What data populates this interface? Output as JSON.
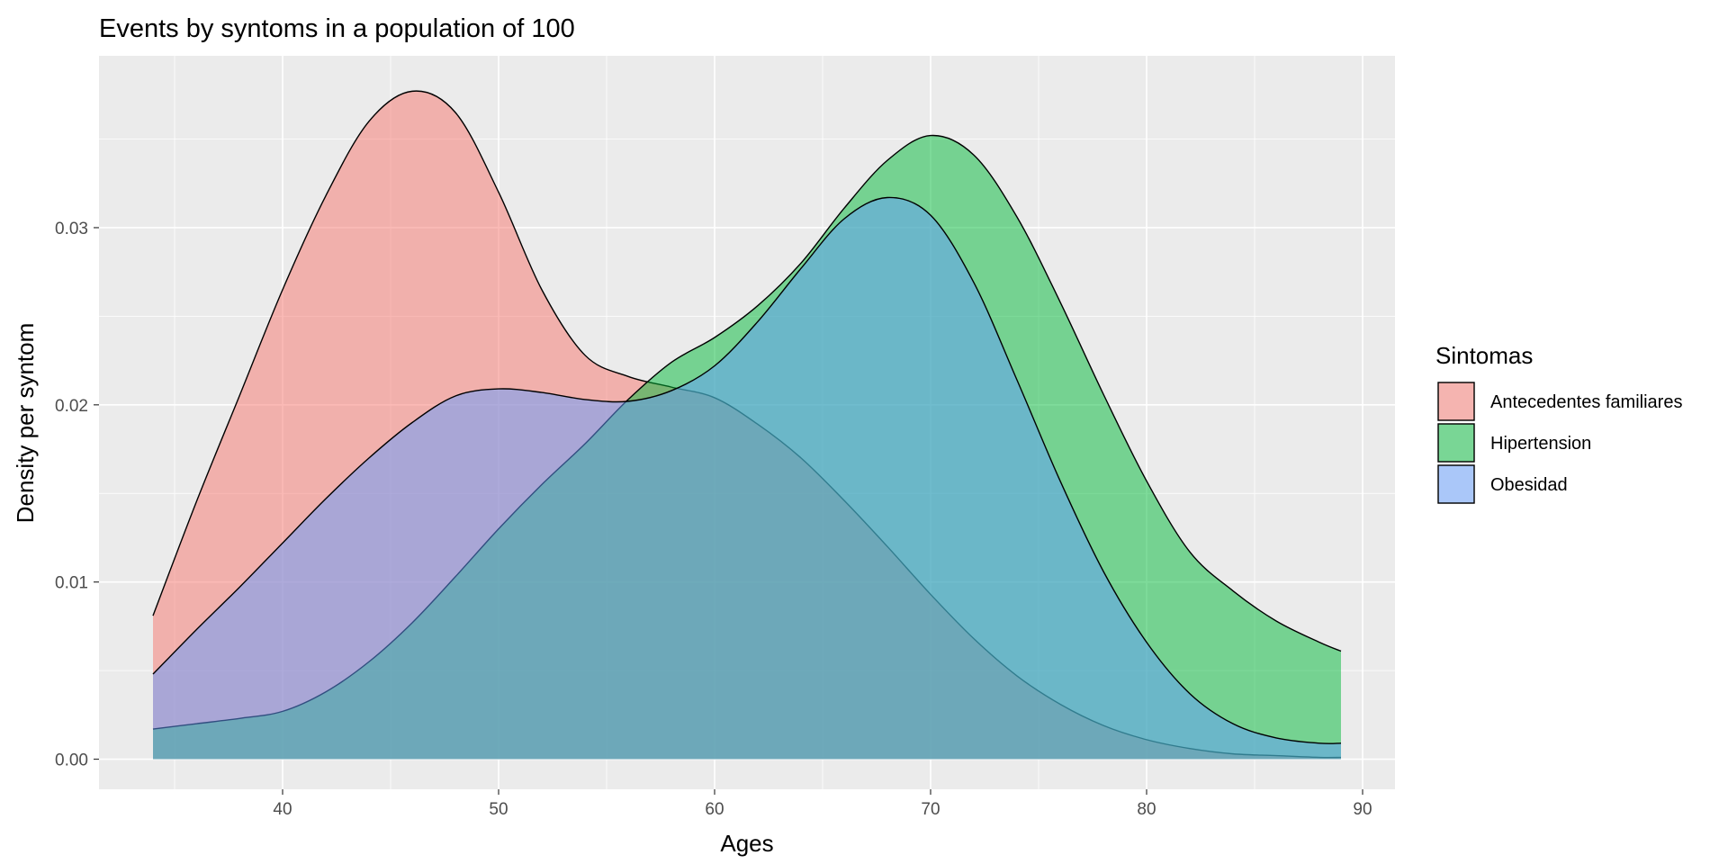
{
  "chart_data": {
    "type": "area",
    "title": "Events by syntoms in a population of 100",
    "xlabel": "Ages",
    "ylabel": "Density per syntom",
    "xlim": [
      31.5,
      91.5
    ],
    "ylim": [
      -0.0017,
      0.0397
    ],
    "x_ticks": [
      40,
      50,
      60,
      70,
      80,
      90
    ],
    "x_tick_labels": [
      "40",
      "50",
      "60",
      "70",
      "80",
      "90"
    ],
    "y_ticks": [
      0.0,
      0.01,
      0.02,
      0.03
    ],
    "y_tick_labels": [
      "0.00",
      "0.01",
      "0.02",
      "0.03"
    ],
    "grid": true,
    "legend": {
      "title": "Sintomas",
      "position": "right"
    },
    "fill_opacity": 0.5,
    "series": [
      {
        "name": "Antecedentes familiares",
        "color": "#F8766D",
        "x": [
          34,
          36,
          38,
          40,
          42,
          44,
          46,
          48,
          50,
          52,
          54,
          56,
          58,
          60,
          62,
          64,
          66,
          68,
          70,
          72,
          74,
          76,
          78,
          80,
          82,
          84,
          86,
          88,
          89
        ],
        "y": [
          0.0081,
          0.0145,
          0.0205,
          0.0265,
          0.0318,
          0.036,
          0.0377,
          0.0365,
          0.032,
          0.0265,
          0.0228,
          0.0216,
          0.021,
          0.0204,
          0.0189,
          0.017,
          0.0146,
          0.012,
          0.0093,
          0.0068,
          0.0047,
          0.0031,
          0.0019,
          0.0011,
          0.0006,
          0.0003,
          0.0002,
          0.0001,
          0.0001
        ]
      },
      {
        "name": "Hipertension",
        "color": "#00BA38",
        "x": [
          34,
          36,
          38,
          40,
          42,
          44,
          46,
          48,
          50,
          52,
          54,
          56,
          58,
          60,
          62,
          64,
          66,
          68,
          70,
          72,
          74,
          76,
          78,
          80,
          82,
          84,
          86,
          88,
          89
        ],
        "y": [
          0.0017,
          0.002,
          0.0023,
          0.0027,
          0.0038,
          0.0055,
          0.0077,
          0.0103,
          0.013,
          0.0155,
          0.0178,
          0.0203,
          0.0224,
          0.0238,
          0.0256,
          0.028,
          0.0311,
          0.0338,
          0.0352,
          0.0341,
          0.0306,
          0.0258,
          0.0206,
          0.0157,
          0.0117,
          0.0095,
          0.0078,
          0.0066,
          0.0061
        ]
      },
      {
        "name": "Obesidad",
        "color": "#619CFF",
        "x": [
          34,
          36,
          38,
          40,
          42,
          44,
          46,
          48,
          50,
          52,
          54,
          56,
          58,
          60,
          62,
          64,
          66,
          68,
          70,
          72,
          74,
          76,
          78,
          80,
          82,
          84,
          86,
          88,
          89
        ],
        "y": [
          0.0048,
          0.0073,
          0.0097,
          0.0122,
          0.0147,
          0.017,
          0.019,
          0.0205,
          0.0209,
          0.0207,
          0.0203,
          0.0202,
          0.0208,
          0.0222,
          0.0247,
          0.0277,
          0.0305,
          0.0317,
          0.0307,
          0.0269,
          0.0214,
          0.0157,
          0.0106,
          0.0066,
          0.0037,
          0.002,
          0.0012,
          0.0009,
          0.0009
        ]
      }
    ]
  }
}
